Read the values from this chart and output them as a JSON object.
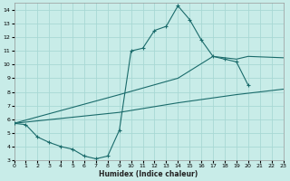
{
  "xlabel": "Humidex (Indice chaleur)",
  "bg_color": "#c8ece8",
  "grid_color": "#a8d8d4",
  "line_color": "#1a6b6b",
  "xlim": [
    0,
    23
  ],
  "ylim": [
    3,
    14.5
  ],
  "xticks": [
    0,
    1,
    2,
    3,
    4,
    5,
    6,
    7,
    8,
    9,
    10,
    11,
    12,
    13,
    14,
    15,
    16,
    17,
    18,
    19,
    20,
    21,
    22,
    23
  ],
  "yticks": [
    3,
    4,
    5,
    6,
    7,
    8,
    9,
    10,
    11,
    12,
    13,
    14
  ],
  "curve_jagged_x": [
    0,
    1,
    2,
    3,
    4,
    5,
    6,
    7,
    8,
    9,
    10,
    11,
    12,
    13,
    14,
    15,
    16,
    17,
    18,
    19,
    20
  ],
  "curve_jagged_y": [
    5.7,
    5.6,
    4.7,
    4.3,
    4.0,
    3.8,
    3.3,
    3.1,
    3.3,
    5.2,
    11.0,
    11.2,
    12.5,
    12.8,
    14.3,
    13.3,
    11.8,
    10.6,
    10.4,
    10.2,
    8.5
  ],
  "curve_upper_x": [
    0,
    9,
    14,
    17,
    19,
    20,
    23
  ],
  "curve_upper_y": [
    5.7,
    7.8,
    9.0,
    10.6,
    10.4,
    10.6,
    10.5
  ],
  "curve_lower_x": [
    0,
    9,
    14,
    19,
    23
  ],
  "curve_lower_y": [
    5.7,
    6.5,
    7.2,
    7.8,
    8.2
  ]
}
